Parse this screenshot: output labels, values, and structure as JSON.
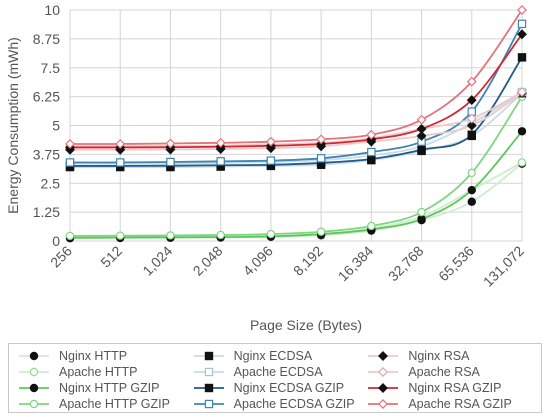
{
  "chart_data": {
    "type": "line",
    "title": "",
    "xlabel": "Page Size (Bytes)",
    "ylabel": "Energy Consumption (mWh)",
    "categories": [
      "256",
      "512",
      "1,024",
      "2,048",
      "4,096",
      "8,192",
      "16,384",
      "32,768",
      "65,536",
      "131,072"
    ],
    "y_ticks": [
      "0",
      "1.25",
      "2.5",
      "3.75",
      "5",
      "6.25",
      "7.5",
      "8.75",
      "10"
    ],
    "ylim": [
      0,
      10
    ],
    "grid": true,
    "legend_position": "bottom",
    "series": [
      {
        "name": "Nginx HTTP",
        "color": "#111111",
        "line_color": "#cfeccf",
        "marker": "circle-filled",
        "values": [
          0.12,
          0.13,
          0.14,
          0.15,
          0.18,
          0.25,
          0.45,
          0.9,
          1.7,
          3.35
        ]
      },
      {
        "name": "Apache HTTP",
        "color": "#8fdc8f",
        "line_color": "#cfeccf",
        "marker": "circle-open",
        "values": [
          0.15,
          0.16,
          0.17,
          0.19,
          0.22,
          0.3,
          0.55,
          1.05,
          2.2,
          3.4
        ]
      },
      {
        "name": "Nginx HTTP GZIP",
        "color": "#111111",
        "line_color": "#5cc85c",
        "marker": "circle-filled",
        "values": [
          0.14,
          0.15,
          0.16,
          0.17,
          0.2,
          0.3,
          0.5,
          0.95,
          2.2,
          4.75
        ]
      },
      {
        "name": "Apache HTTP GZIP",
        "color": "#7ed67e",
        "line_color": "#7ed67e",
        "marker": "circle-open",
        "values": [
          0.22,
          0.23,
          0.24,
          0.26,
          0.3,
          0.4,
          0.65,
          1.25,
          2.95,
          6.25
        ]
      },
      {
        "name": "Nginx ECDSA",
        "color": "#111111",
        "line_color": "#c9dbe6",
        "marker": "square-filled",
        "values": [
          3.2,
          3.2,
          3.2,
          3.22,
          3.25,
          3.3,
          3.5,
          3.9,
          4.55,
          6.4
        ]
      },
      {
        "name": "Apache ECDSA",
        "color": "#a8c4d4",
        "line_color": "#c9dbe6",
        "marker": "square-open",
        "values": [
          3.35,
          3.35,
          3.36,
          3.38,
          3.42,
          3.5,
          3.7,
          4.1,
          5.1,
          6.45
        ]
      },
      {
        "name": "Nginx ECDSA GZIP",
        "color": "#111111",
        "line_color": "#1e5a8c",
        "marker": "square-filled",
        "values": [
          3.25,
          3.25,
          3.26,
          3.28,
          3.3,
          3.38,
          3.55,
          3.95,
          4.6,
          7.95
        ]
      },
      {
        "name": "Apache ECDSA GZIP",
        "color": "#3f86b3",
        "line_color": "#3f86b3",
        "marker": "square-open",
        "values": [
          3.4,
          3.4,
          3.42,
          3.45,
          3.48,
          3.58,
          3.85,
          4.3,
          5.6,
          9.4
        ]
      },
      {
        "name": "Nginx RSA",
        "color": "#111111",
        "line_color": "#eec9c9",
        "marker": "diamond-filled",
        "values": [
          3.95,
          3.95,
          3.96,
          3.98,
          4.02,
          4.1,
          4.3,
          4.55,
          5.0,
          6.4
        ]
      },
      {
        "name": "Apache RSA",
        "color": "#e0a8a8",
        "line_color": "#eec9c9",
        "marker": "diamond-open",
        "values": [
          4.1,
          4.1,
          4.11,
          4.13,
          4.18,
          4.25,
          4.45,
          4.85,
          5.3,
          6.45
        ]
      },
      {
        "name": "Nginx RSA GZIP",
        "color": "#111111",
        "line_color": "#d6262e",
        "marker": "diamond-filled",
        "values": [
          4.05,
          4.05,
          4.06,
          4.08,
          4.12,
          4.2,
          4.4,
          4.85,
          6.1,
          8.95
        ]
      },
      {
        "name": "Apache RSA GZIP",
        "color": "#e8707a",
        "line_color": "#e8707a",
        "marker": "diamond-open",
        "values": [
          4.2,
          4.2,
          4.22,
          4.25,
          4.3,
          4.4,
          4.6,
          5.25,
          6.9,
          10.0
        ]
      }
    ]
  }
}
